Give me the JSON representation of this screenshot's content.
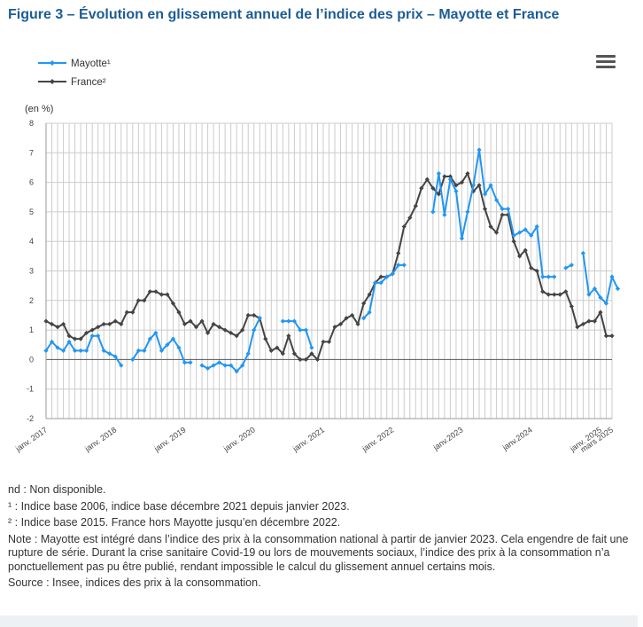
{
  "figure": {
    "title": "Figure 3 – Évolution en glissement annuel de l’indice des prix – Mayotte et France"
  },
  "menu_icon": "hamburger-menu-icon",
  "colors": {
    "mayotte": "#2196f3",
    "france": "#444444",
    "title": "#1d5c96",
    "grid": "#cccccc"
  },
  "chart_data": {
    "type": "line",
    "ylabel": "(en %)",
    "ylim": [
      -2,
      8
    ],
    "yticks": [
      "-2",
      "-1",
      "0",
      "1",
      "2",
      "3",
      "4",
      "5",
      "6",
      "7",
      "8"
    ],
    "xlim": [
      "2017-01",
      "2025-03"
    ],
    "xtick_labels": [
      {
        "label": "janv. 2017",
        "month": "2017-01"
      },
      {
        "label": "janv. 2018",
        "month": "2018-01"
      },
      {
        "label": "janv. 2019",
        "month": "2019-01"
      },
      {
        "label": "janv. 2020",
        "month": "2020-01"
      },
      {
        "label": "janv. 2021",
        "month": "2021-01"
      },
      {
        "label": "janv. 2022",
        "month": "2022-01"
      },
      {
        "label": "janv.2023",
        "month": "2023-01"
      },
      {
        "label": "janv.2024",
        "month": "2024-01"
      },
      {
        "label": "janv. 2025",
        "month": "2025-01"
      },
      {
        "label": "mars 2025",
        "month": "2025-03"
      }
    ],
    "grid": true,
    "legend_position": "top-left",
    "series": [
      {
        "name": "Mayotte¹",
        "color": "#2196f3",
        "start": "2017-01",
        "values": [
          0.3,
          0.6,
          0.4,
          0.3,
          0.6,
          0.3,
          0.3,
          0.3,
          0.8,
          0.8,
          0.3,
          0.2,
          0.1,
          -0.2,
          null,
          0.0,
          0.3,
          0.3,
          0.7,
          0.9,
          0.3,
          0.5,
          0.7,
          0.4,
          -0.1,
          -0.1,
          null,
          -0.2,
          -0.3,
          -0.2,
          -0.1,
          -0.2,
          -0.2,
          -0.4,
          -0.2,
          0.2,
          1.0,
          1.4,
          null,
          null,
          null,
          1.3,
          1.3,
          1.3,
          1.0,
          1.0,
          0.4,
          null,
          null,
          null,
          null,
          null,
          null,
          null,
          null,
          1.4,
          1.6,
          2.6,
          2.6,
          2.8,
          2.9,
          3.2,
          3.2,
          null,
          null,
          null,
          null,
          5.0,
          6.3,
          4.9,
          6.1,
          5.7,
          4.1,
          5.0,
          5.9,
          7.1,
          5.6,
          5.9,
          5.4,
          5.1,
          5.1,
          4.2,
          4.3,
          4.4,
          4.2,
          4.5,
          2.8,
          2.8,
          2.8,
          null,
          3.1,
          3.2,
          null,
          3.6,
          2.2,
          2.4,
          2.1,
          1.9,
          2.8,
          2.4
        ]
      },
      {
        "name": "France²",
        "color": "#444444",
        "start": "2017-01",
        "values": [
          1.3,
          1.2,
          1.1,
          1.2,
          0.8,
          0.7,
          0.7,
          0.9,
          1.0,
          1.1,
          1.2,
          1.2,
          1.3,
          1.2,
          1.6,
          1.6,
          2.0,
          2.0,
          2.3,
          2.3,
          2.2,
          2.2,
          1.9,
          1.6,
          1.2,
          1.3,
          1.1,
          1.3,
          0.9,
          1.2,
          1.1,
          1.0,
          0.9,
          0.8,
          1.0,
          1.5,
          1.5,
          1.4,
          0.7,
          0.3,
          0.4,
          0.2,
          0.8,
          0.2,
          0.0,
          0.0,
          0.2,
          0.0,
          0.6,
          0.6,
          1.1,
          1.2,
          1.4,
          1.5,
          1.2,
          1.9,
          2.2,
          2.6,
          2.8,
          2.8,
          2.9,
          3.6,
          4.5,
          4.8,
          5.2,
          5.8,
          6.1,
          5.8,
          5.6,
          6.2,
          6.2,
          5.9,
          6.0,
          6.3,
          5.7,
          5.9,
          5.1,
          4.5,
          4.3,
          4.9,
          4.9,
          4.0,
          3.5,
          3.7,
          3.1,
          3.0,
          2.3,
          2.2,
          2.2,
          2.2,
          2.3,
          1.8,
          1.1,
          1.2,
          1.3,
          1.3,
          1.6,
          0.8,
          0.8
        ]
      }
    ]
  },
  "notes": {
    "nd": "nd : Non disponible.",
    "note1": "¹ : Indice base 2006, indice base décembre 2021 depuis janvier 2023.",
    "note2": "² : Indice base 2015. France hors Mayotte jusqu’en décembre 2022.",
    "note": "Note : Mayotte est intégré dans l’indice des prix à la consommation national à partir de janvier 2023. Cela engendre de fait une rupture de série. Durant la crise sanitaire Covid-19 ou lors de mouvements sociaux, l’indice des prix à la consommation n’a ponctuellement pas pu être publié, rendant impossible le calcul du glissement annuel certains mois.",
    "source": "Source : Insee, indices des prix à la consommation."
  }
}
